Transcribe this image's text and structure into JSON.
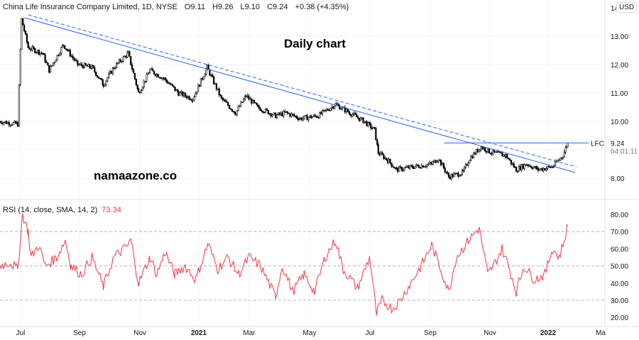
{
  "header": {
    "symbol": "China Life Insurance Company Limited, 1D, NYSE",
    "open": "O9.11",
    "high": "H9.26",
    "low": "L9.10",
    "close": "C9.24",
    "change": "+0.38 (+4.35%)"
  },
  "currency": "USD",
  "annotations": {
    "title": "Daily chart",
    "watermark": "namaazone.co",
    "ticker_label": "LFC",
    "last_price": "9.24",
    "countdown": "04:01:11"
  },
  "rsi": {
    "label": "RSI (14, close, SMA, 14, 2)",
    "value": "73.34",
    "color": "#f23645",
    "levels": [
      70,
      50,
      30
    ]
  },
  "chart_data": [
    {
      "type": "candlestick",
      "price_axis": {
        "ticks": [
          "14",
          "13.00",
          "12.00",
          "11.00",
          "10.00",
          "8.00"
        ],
        "range": [
          7.3,
          14.3
        ]
      },
      "x_ticks": [
        "Jul",
        "Sep",
        "Nov",
        "2021",
        "Mar",
        "May",
        "Jul",
        "Sep",
        "Nov",
        "2022",
        "Ma"
      ],
      "closes": [
        [
          "2020-06-09",
          10.0
        ],
        [
          "2020-06-28",
          9.9
        ],
        [
          "2020-07-02",
          13.6
        ],
        [
          "2020-07-09",
          12.6
        ],
        [
          "2020-07-24",
          12.4
        ],
        [
          "2020-07-31",
          11.8
        ],
        [
          "2020-08-15",
          12.7
        ],
        [
          "2020-08-30",
          12.0
        ],
        [
          "2020-09-14",
          11.9
        ],
        [
          "2020-09-26",
          11.3
        ],
        [
          "2020-10-07",
          11.9
        ],
        [
          "2020-10-22",
          12.4
        ],
        [
          "2020-11-02",
          11.0
        ],
        [
          "2020-11-14",
          11.8
        ],
        [
          "2020-11-29",
          11.5
        ],
        [
          "2020-12-14",
          11.0
        ],
        [
          "2020-12-29",
          10.8
        ],
        [
          "2021-01-13",
          11.9
        ],
        [
          "2021-01-28",
          10.8
        ],
        [
          "2021-02-12",
          10.3
        ],
        [
          "2021-02-23",
          10.9
        ],
        [
          "2021-03-07",
          10.5
        ],
        [
          "2021-03-26",
          10.2
        ],
        [
          "2021-04-06",
          10.3
        ],
        [
          "2021-04-21",
          10.1
        ],
        [
          "2021-05-10",
          10.2
        ],
        [
          "2021-05-28",
          10.6
        ],
        [
          "2021-06-12",
          10.3
        ],
        [
          "2021-06-27",
          10.0
        ],
        [
          "2021-07-08",
          9.7
        ],
        [
          "2021-07-12",
          8.9
        ],
        [
          "2021-07-23",
          8.6
        ],
        [
          "2021-07-31",
          8.3
        ],
        [
          "2021-08-18",
          8.4
        ],
        [
          "2021-09-06",
          8.5
        ],
        [
          "2021-09-13",
          8.7
        ],
        [
          "2021-09-24",
          8.05
        ],
        [
          "2021-10-09",
          8.2
        ],
        [
          "2021-10-16",
          8.7
        ],
        [
          "2021-10-28",
          9.1
        ],
        [
          "2021-11-08",
          8.9
        ],
        [
          "2021-11-23",
          8.8
        ],
        [
          "2021-12-04",
          8.3
        ],
        [
          "2021-12-15",
          8.5
        ],
        [
          "2021-12-27",
          8.3
        ],
        [
          "2022-01-11",
          8.4
        ],
        [
          "2022-01-22",
          8.8
        ],
        [
          "2022-01-27",
          9.24
        ]
      ],
      "trendlines": [
        {
          "style": "solid",
          "from": [
            "2020-07-05",
            13.65
          ],
          "to": [
            "2022-02-04",
            8.2
          ]
        },
        {
          "style": "dashed",
          "from": [
            "2020-07-09",
            13.75
          ],
          "to": [
            "2022-02-05",
            8.4
          ]
        },
        {
          "style": "solid",
          "from": [
            "2021-09-19",
            9.24
          ],
          "to": [
            "2022-02-18",
            9.24
          ]
        }
      ],
      "colors": {
        "candles": "#000000",
        "trendline": "#2962ff"
      }
    },
    {
      "type": "line",
      "name": "RSI",
      "y_ticks": [
        "80.00",
        "70.00",
        "60.00",
        "50.00",
        "40.00",
        "30.00",
        "20.00"
      ],
      "ylim": [
        17,
        85
      ],
      "points": [
        [
          "2020-06-09",
          50
        ],
        [
          "2020-06-20",
          52
        ],
        [
          "2020-06-28",
          48
        ],
        [
          "2020-07-03",
          80
        ],
        [
          "2020-07-09",
          70
        ],
        [
          "2020-07-12",
          55
        ],
        [
          "2020-07-20",
          62
        ],
        [
          "2020-07-27",
          50
        ],
        [
          "2020-08-08",
          55
        ],
        [
          "2020-08-17",
          65
        ],
        [
          "2020-08-23",
          50
        ],
        [
          "2020-09-03",
          45
        ],
        [
          "2020-09-14",
          55
        ],
        [
          "2020-09-26",
          38
        ],
        [
          "2020-10-07",
          55
        ],
        [
          "2020-10-22",
          62
        ],
        [
          "2020-10-25",
          65
        ],
        [
          "2020-11-02",
          40
        ],
        [
          "2020-11-14",
          55
        ],
        [
          "2020-11-21",
          45
        ],
        [
          "2020-11-30",
          58
        ],
        [
          "2020-12-10",
          45
        ],
        [
          "2020-12-21",
          50
        ],
        [
          "2021-01-01",
          42
        ],
        [
          "2021-01-14",
          63
        ],
        [
          "2021-01-24",
          48
        ],
        [
          "2021-02-04",
          55
        ],
        [
          "2021-02-15",
          45
        ],
        [
          "2021-02-26",
          55
        ],
        [
          "2021-03-10",
          50
        ],
        [
          "2021-03-26",
          32
        ],
        [
          "2021-04-02",
          50
        ],
        [
          "2021-04-13",
          35
        ],
        [
          "2021-04-25",
          45
        ],
        [
          "2021-05-06",
          35
        ],
        [
          "2021-05-17",
          55
        ],
        [
          "2021-05-28",
          65
        ],
        [
          "2021-06-05",
          48
        ],
        [
          "2021-06-20",
          37
        ],
        [
          "2021-07-03",
          55
        ],
        [
          "2021-07-10",
          22
        ],
        [
          "2021-07-16",
          30
        ],
        [
          "2021-07-27",
          25
        ],
        [
          "2021-08-04",
          30
        ],
        [
          "2021-08-15",
          40
        ],
        [
          "2021-08-26",
          50
        ],
        [
          "2021-09-06",
          62
        ],
        [
          "2021-09-13",
          52
        ],
        [
          "2021-09-24",
          35
        ],
        [
          "2021-10-02",
          55
        ],
        [
          "2021-10-15",
          65
        ],
        [
          "2021-10-26",
          72
        ],
        [
          "2021-11-04",
          45
        ],
        [
          "2021-11-12",
          52
        ],
        [
          "2021-11-19",
          60
        ],
        [
          "2021-11-27",
          48
        ],
        [
          "2021-12-04",
          35
        ],
        [
          "2021-12-12",
          50
        ],
        [
          "2021-12-23",
          42
        ],
        [
          "2022-01-03",
          45
        ],
        [
          "2022-01-11",
          60
        ],
        [
          "2022-01-18",
          55
        ],
        [
          "2022-01-22",
          62
        ],
        [
          "2022-01-27",
          73.34
        ]
      ]
    }
  ]
}
